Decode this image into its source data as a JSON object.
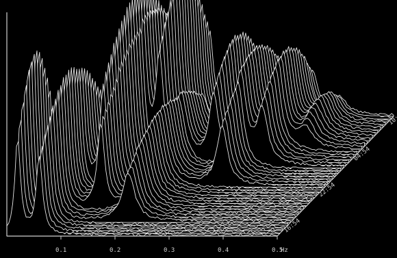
{
  "chart_data": {
    "type": "waterfall",
    "title": "",
    "xlabel": "",
    "ylabel": "",
    "x_axis": {
      "range": [
        0.0,
        0.5
      ],
      "ticks": [
        {
          "value": 0.1,
          "label": "0.1"
        },
        {
          "value": 0.2,
          "label": "0.2"
        },
        {
          "value": 0.3,
          "label": "0.3"
        },
        {
          "value": 0.4,
          "label": "0.4"
        },
        {
          "value": 0.5,
          "label": "0.5"
        }
      ],
      "end_label": "Hz"
    },
    "time_axis": {
      "ticks": [
        "16:54",
        "22:54",
        "04:54",
        "10:"
      ]
    },
    "trace_count": 45,
    "peaks": [
      {
        "freq": 0.02,
        "amp": 0.78,
        "width": 0.006,
        "t_from": 0.0,
        "t_to": 0.3
      },
      {
        "freq": 0.06,
        "amp": 0.62,
        "width": 0.007,
        "t_from": 0.0,
        "t_to": 0.55
      },
      {
        "freq": 0.1,
        "amp": 0.8,
        "width": 0.007,
        "t_from": 0.35,
        "t_to": 1.0
      },
      {
        "freq": 0.13,
        "amp": 0.7,
        "width": 0.008,
        "t_from": 0.2,
        "t_to": 1.0
      },
      {
        "freq": 0.16,
        "amp": 0.85,
        "width": 0.008,
        "t_from": 0.55,
        "t_to": 1.0
      },
      {
        "freq": 0.2,
        "amp": 0.38,
        "width": 0.014,
        "t_from": 0.1,
        "t_to": 0.75
      },
      {
        "freq": 0.26,
        "amp": 0.55,
        "width": 0.01,
        "t_from": 0.55,
        "t_to": 1.0
      },
      {
        "freq": 0.31,
        "amp": 0.5,
        "width": 0.012,
        "t_from": 0.4,
        "t_to": 0.95
      },
      {
        "freq": 0.35,
        "amp": 0.45,
        "width": 0.012,
        "t_from": 0.55,
        "t_to": 1.0
      },
      {
        "freq": 0.4,
        "amp": 0.18,
        "width": 0.016,
        "t_from": 0.7,
        "t_to": 1.0
      }
    ],
    "colors": {
      "background": "#000000",
      "trace": "#e6e6e6",
      "axis": "#d0d0d0",
      "label": "#cfcfcf"
    },
    "grid": false,
    "legend": "none"
  }
}
